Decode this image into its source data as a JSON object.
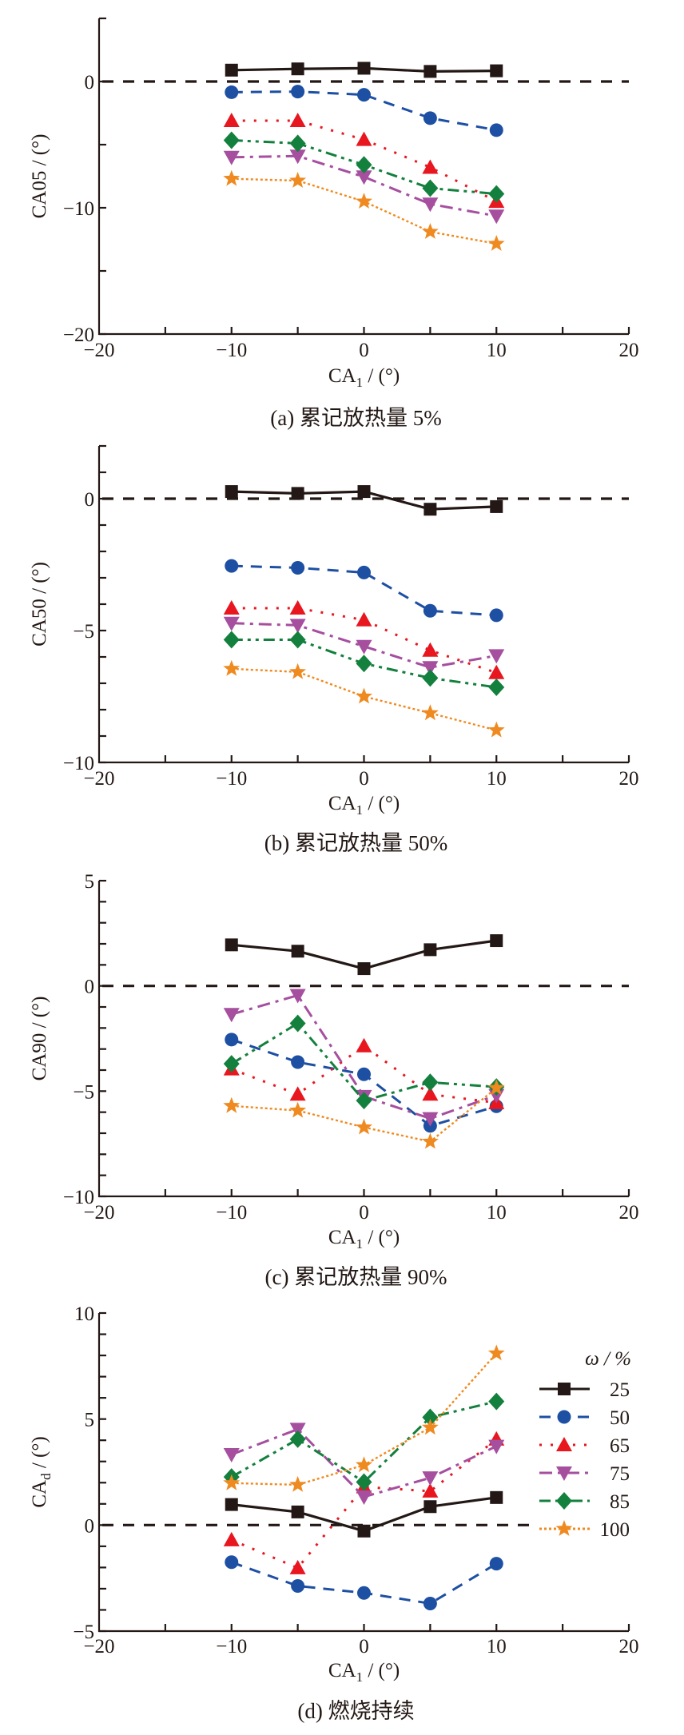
{
  "legend": {
    "title": "ω / %"
  },
  "series_styles": [
    {
      "name": "25",
      "color": "#231815",
      "marker": "square",
      "dash": "solid"
    },
    {
      "name": "50",
      "color": "#1d4fa3",
      "marker": "circle",
      "dash": "dash"
    },
    {
      "name": "65",
      "color": "#e8161f",
      "marker": "triangle-up",
      "dash": "dot"
    },
    {
      "name": "75",
      "color": "#a64f9f",
      "marker": "triangle-down",
      "dash": "dashdot"
    },
    {
      "name": "85",
      "color": "#14803e",
      "marker": "diamond",
      "dash": "dashdotdot"
    },
    {
      "name": "100",
      "color": "#ef8a20",
      "marker": "star",
      "dash": "fine-dot"
    }
  ],
  "chart_data": [
    {
      "type": "line",
      "id": "a",
      "caption": "(a)  累记放热量 5%",
      "xlabel": "CA1 / (°)",
      "ylabel": "CA05 / (°)",
      "xlim": [
        -20,
        20
      ],
      "ylim": [
        -20,
        5
      ],
      "xticks": [
        -20,
        -10,
        0,
        10,
        20
      ],
      "xminor": [
        -15,
        -5,
        5,
        15
      ],
      "yticks": [
        -20,
        -10,
        0
      ],
      "yminor": [
        -15,
        -5,
        5
      ],
      "reference_line_y": 0,
      "legend": false,
      "x": [
        -10,
        -5,
        0,
        5,
        10
      ],
      "series": [
        {
          "name": "25",
          "values": [
            0.9,
            1.0,
            1.05,
            0.8,
            0.85
          ]
        },
        {
          "name": "50",
          "values": [
            -0.85,
            -0.8,
            -1.05,
            -2.9,
            -3.85
          ]
        },
        {
          "name": "65",
          "values": [
            -3.1,
            -3.1,
            -4.6,
            -6.8,
            -9.5
          ]
        },
        {
          "name": "75",
          "values": [
            -6.0,
            -5.9,
            -7.55,
            -9.7,
            -10.65
          ]
        },
        {
          "name": "85",
          "values": [
            -4.65,
            -4.9,
            -6.6,
            -8.45,
            -8.9
          ]
        },
        {
          "name": "100",
          "values": [
            -7.7,
            -7.85,
            -9.5,
            -11.9,
            -12.85
          ]
        }
      ]
    },
    {
      "type": "line",
      "id": "b",
      "caption": "(b)  累记放热量 50%",
      "xlabel": "CA1 / (°)",
      "ylabel": "CA50 / (°)",
      "xlim": [
        -20,
        20
      ],
      "ylim": [
        -10,
        2
      ],
      "xticks": [
        -20,
        -10,
        0,
        10,
        20
      ],
      "xminor": [
        -15,
        -5,
        5,
        15
      ],
      "yticks": [
        -10,
        -5,
        0
      ],
      "yminor": [
        -9,
        -8,
        -7,
        -6,
        -4,
        -3,
        -2,
        -1,
        1,
        2
      ],
      "reference_line_y": 0,
      "legend": false,
      "x": [
        -10,
        -5,
        0,
        5,
        10
      ],
      "series": [
        {
          "name": "25",
          "values": [
            0.27,
            0.2,
            0.27,
            -0.4,
            -0.3
          ]
        },
        {
          "name": "50",
          "values": [
            -2.55,
            -2.62,
            -2.8,
            -4.25,
            -4.42
          ]
        },
        {
          "name": "65",
          "values": [
            -4.15,
            -4.15,
            -4.6,
            -5.75,
            -6.6
          ]
        },
        {
          "name": "75",
          "values": [
            -4.72,
            -4.8,
            -5.6,
            -6.4,
            -5.95
          ]
        },
        {
          "name": "85",
          "values": [
            -5.35,
            -5.35,
            -6.25,
            -6.8,
            -7.15
          ]
        },
        {
          "name": "100",
          "values": [
            -6.45,
            -6.57,
            -7.5,
            -8.13,
            -8.78
          ]
        }
      ]
    },
    {
      "type": "line",
      "id": "c",
      "caption": "(c)  累记放热量 90%",
      "xlabel": "CA1 / (°)",
      "ylabel": "CA90 / (°)",
      "xlim": [
        -20,
        20
      ],
      "ylim": [
        -10,
        5
      ],
      "xticks": [
        -20,
        -10,
        0,
        10,
        20
      ],
      "xminor": [
        -15,
        -5,
        5,
        15
      ],
      "yticks": [
        -10,
        -5,
        0,
        5
      ],
      "yminor": [
        -9,
        -8,
        -7,
        -6,
        -4,
        -3,
        -2,
        -1,
        1,
        2,
        3,
        4
      ],
      "reference_line_y": 0,
      "legend": false,
      "x": [
        -10,
        -5,
        0,
        5,
        10
      ],
      "series": [
        {
          "name": "25",
          "values": [
            1.95,
            1.65,
            0.82,
            1.72,
            2.15
          ]
        },
        {
          "name": "50",
          "values": [
            -2.55,
            -3.62,
            -4.2,
            -6.65,
            -5.72
          ]
        },
        {
          "name": "65",
          "values": [
            -3.95,
            -5.15,
            -2.85,
            -5.15,
            -5.55
          ]
        },
        {
          "name": "75",
          "values": [
            -1.35,
            -0.45,
            -5.25,
            -6.3,
            -5.2
          ]
        },
        {
          "name": "85",
          "values": [
            -3.7,
            -1.78,
            -5.45,
            -4.58,
            -4.8
          ]
        },
        {
          "name": "100",
          "values": [
            -5.7,
            -5.92,
            -6.72,
            -7.4,
            -4.85
          ]
        }
      ]
    },
    {
      "type": "line",
      "id": "d",
      "caption": "(d)  燃烧持续",
      "xlabel": "CA1 / (°)",
      "ylabel": "CAd / (°)",
      "xlim": [
        -20,
        20
      ],
      "ylim": [
        -5,
        10
      ],
      "xticks": [
        -20,
        -10,
        0,
        10,
        20
      ],
      "xminor": [
        -15,
        -5,
        5,
        15
      ],
      "yticks": [
        -5,
        0,
        5,
        10
      ],
      "yminor": [
        -4,
        -3,
        -2,
        -1,
        1,
        2,
        3,
        4,
        6,
        7,
        8,
        9
      ],
      "reference_line_y": 0,
      "legend": true,
      "legend_position": "right",
      "x": [
        -10,
        -5,
        0,
        5,
        10
      ],
      "series": [
        {
          "name": "25",
          "values": [
            0.97,
            0.62,
            -0.28,
            0.87,
            1.3
          ]
        },
        {
          "name": "50",
          "values": [
            -1.75,
            -2.87,
            -3.2,
            -3.7,
            -1.82
          ]
        },
        {
          "name": "65",
          "values": [
            -0.7,
            -2.02,
            1.8,
            1.6,
            4.05
          ]
        },
        {
          "name": "75",
          "values": [
            3.33,
            4.52,
            1.33,
            2.23,
            3.72
          ]
        },
        {
          "name": "85",
          "values": [
            2.27,
            4.05,
            2.03,
            5.08,
            5.83
          ]
        },
        {
          "name": "100",
          "values": [
            1.98,
            1.9,
            2.83,
            4.6,
            8.1
          ]
        }
      ]
    }
  ]
}
